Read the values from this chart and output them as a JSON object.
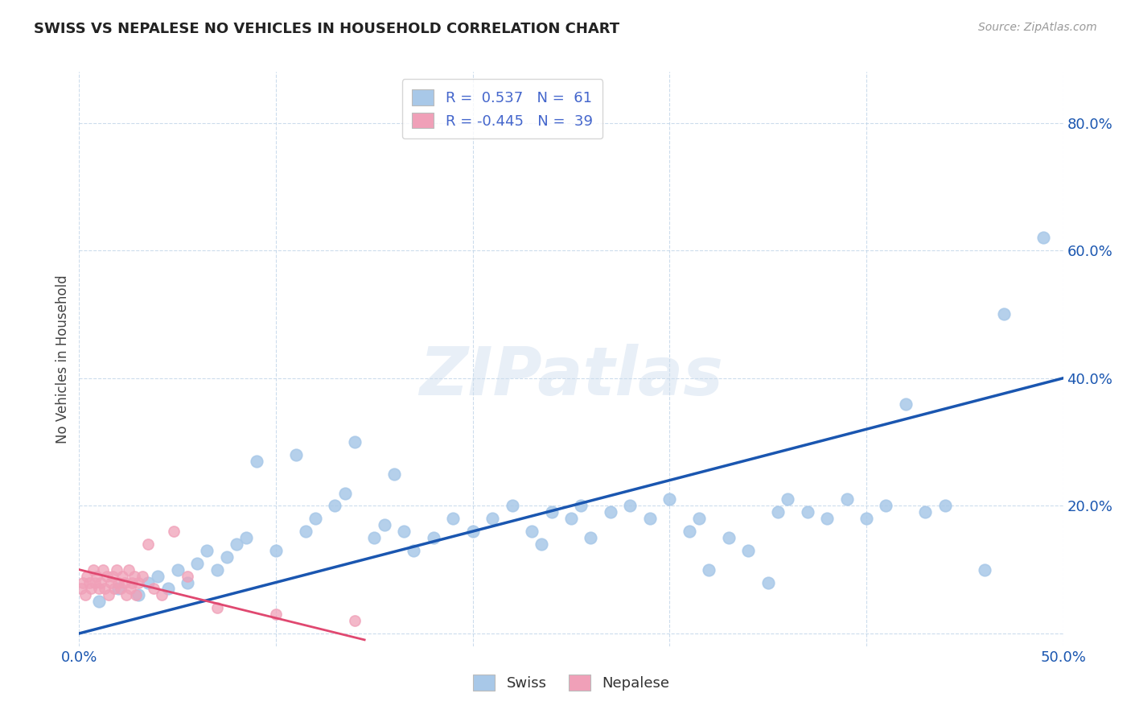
{
  "title": "SWISS VS NEPALESE NO VEHICLES IN HOUSEHOLD CORRELATION CHART",
  "source": "Source: ZipAtlas.com",
  "ylabel": "No Vehicles in Household",
  "xlim": [
    0.0,
    0.5
  ],
  "ylim": [
    -0.02,
    0.88
  ],
  "swiss_R": 0.537,
  "swiss_N": 61,
  "nepalese_R": -0.445,
  "nepalese_N": 39,
  "swiss_color": "#a8c8e8",
  "nepalese_color": "#f0a0b8",
  "swiss_line_color": "#1a56b0",
  "nepalese_line_color": "#e04870",
  "legend_text_color": "#4466cc",
  "watermark": "ZIPatlas",
  "background_color": "#ffffff",
  "swiss_x": [
    0.01,
    0.02,
    0.03,
    0.035,
    0.04,
    0.045,
    0.05,
    0.055,
    0.06,
    0.065,
    0.07,
    0.075,
    0.08,
    0.085,
    0.09,
    0.1,
    0.11,
    0.115,
    0.12,
    0.13,
    0.135,
    0.14,
    0.15,
    0.155,
    0.16,
    0.165,
    0.17,
    0.18,
    0.19,
    0.2,
    0.21,
    0.22,
    0.23,
    0.235,
    0.24,
    0.25,
    0.255,
    0.26,
    0.27,
    0.28,
    0.29,
    0.3,
    0.31,
    0.315,
    0.32,
    0.33,
    0.34,
    0.35,
    0.355,
    0.36,
    0.37,
    0.38,
    0.39,
    0.4,
    0.41,
    0.42,
    0.43,
    0.44,
    0.46,
    0.47,
    0.49
  ],
  "swiss_y": [
    0.05,
    0.07,
    0.06,
    0.08,
    0.09,
    0.07,
    0.1,
    0.08,
    0.11,
    0.13,
    0.1,
    0.12,
    0.14,
    0.15,
    0.27,
    0.13,
    0.28,
    0.16,
    0.18,
    0.2,
    0.22,
    0.3,
    0.15,
    0.17,
    0.25,
    0.16,
    0.13,
    0.15,
    0.18,
    0.16,
    0.18,
    0.2,
    0.16,
    0.14,
    0.19,
    0.18,
    0.2,
    0.15,
    0.19,
    0.2,
    0.18,
    0.21,
    0.16,
    0.18,
    0.1,
    0.15,
    0.13,
    0.08,
    0.19,
    0.21,
    0.19,
    0.18,
    0.21,
    0.18,
    0.2,
    0.36,
    0.19,
    0.2,
    0.1,
    0.5,
    0.62
  ],
  "nepalese_x": [
    0.001,
    0.002,
    0.003,
    0.004,
    0.005,
    0.006,
    0.007,
    0.008,
    0.009,
    0.01,
    0.011,
    0.012,
    0.013,
    0.014,
    0.015,
    0.016,
    0.017,
    0.018,
    0.019,
    0.02,
    0.021,
    0.022,
    0.023,
    0.024,
    0.025,
    0.026,
    0.027,
    0.028,
    0.029,
    0.03,
    0.032,
    0.035,
    0.038,
    0.042,
    0.048,
    0.055,
    0.07,
    0.1,
    0.14
  ],
  "nepalese_y": [
    0.07,
    0.08,
    0.06,
    0.09,
    0.08,
    0.07,
    0.1,
    0.08,
    0.09,
    0.07,
    0.08,
    0.1,
    0.07,
    0.09,
    0.06,
    0.08,
    0.09,
    0.07,
    0.1,
    0.08,
    0.07,
    0.09,
    0.08,
    0.06,
    0.1,
    0.07,
    0.08,
    0.09,
    0.06,
    0.08,
    0.09,
    0.14,
    0.07,
    0.06,
    0.16,
    0.09,
    0.04,
    0.03,
    0.02
  ]
}
